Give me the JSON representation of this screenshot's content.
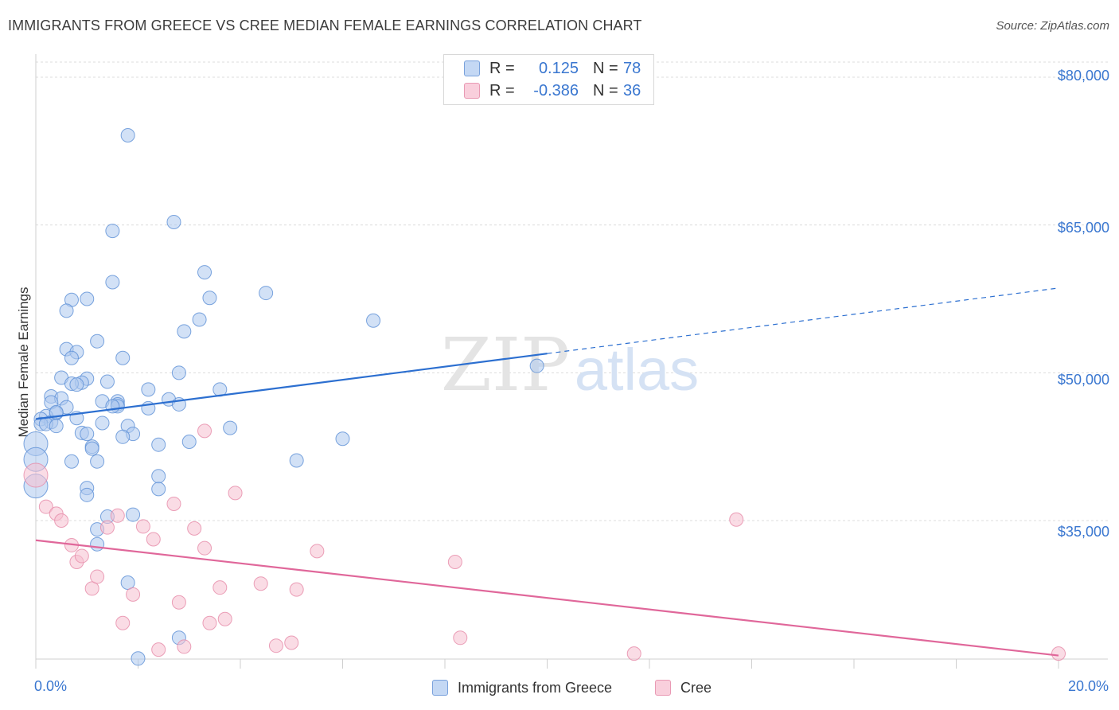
{
  "title": "IMMIGRANTS FROM GREECE VS CREE MEDIAN FEMALE EARNINGS CORRELATION CHART",
  "source": "Source: ZipAtlas.com",
  "watermark": {
    "zip": "ZIP",
    "atlas": "atlas"
  },
  "legend": {
    "greece": {
      "r_label": "R =",
      "r_value": "0.125",
      "n_label": "N =",
      "n_value": "78"
    },
    "cree": {
      "r_label": "R =",
      "r_value": "-0.386",
      "n_label": "N =",
      "n_value": "36"
    }
  },
  "bottom_legend": {
    "greece": "Immigrants from Greece",
    "cree": "Cree"
  },
  "colors": {
    "greece_fill": "#adc8ee",
    "greece_stroke": "#5b8fd6",
    "greece_line": "#2c6fd0",
    "cree_fill": "#f6bfd0",
    "cree_stroke": "#e68aa8",
    "cree_line": "#e0679a",
    "tick_text": "#3a77d0",
    "grid": "#dcdcdc"
  },
  "chart_data": {
    "type": "scatter",
    "xlabel": "",
    "ylabel": "Median Female Earnings",
    "xlim": [
      0,
      20
    ],
    "ylim": [
      20000,
      82500
    ],
    "x_tick_labels": [
      {
        "value": 0,
        "label": "0.0%"
      },
      {
        "value": 20,
        "label": "20.0%"
      }
    ],
    "y_tick_labels": [
      {
        "value": 35000,
        "label": "$35,000"
      },
      {
        "value": 50000,
        "label": "$50,000"
      },
      {
        "value": 65000,
        "label": "$65,000"
      },
      {
        "value": 80000,
        "label": "$80,000"
      }
    ],
    "grid": true,
    "legend_position": "top-center",
    "series": [
      {
        "name": "Immigrants from Greece",
        "points": [
          [
            1.8,
            74100
          ],
          [
            2.7,
            65300
          ],
          [
            1.5,
            64400
          ],
          [
            3.3,
            60200
          ],
          [
            1.5,
            59200
          ],
          [
            4.5,
            58100
          ],
          [
            3.4,
            57600
          ],
          [
            1.0,
            57500
          ],
          [
            0.7,
            57400
          ],
          [
            0.6,
            56300
          ],
          [
            6.6,
            55300
          ],
          [
            3.2,
            55400
          ],
          [
            2.9,
            54200
          ],
          [
            1.2,
            53200
          ],
          [
            0.6,
            52400
          ],
          [
            0.8,
            52100
          ],
          [
            0.7,
            51500
          ],
          [
            1.7,
            51500
          ],
          [
            2.8,
            50000
          ],
          [
            0.5,
            49500
          ],
          [
            1.0,
            49400
          ],
          [
            1.4,
            49100
          ],
          [
            0.9,
            49000
          ],
          [
            0.7,
            48900
          ],
          [
            0.8,
            48800
          ],
          [
            2.2,
            48300
          ],
          [
            3.6,
            48300
          ],
          [
            0.3,
            47600
          ],
          [
            0.5,
            47400
          ],
          [
            2.6,
            47300
          ],
          [
            1.3,
            47100
          ],
          [
            1.6,
            47100
          ],
          [
            0.3,
            47000
          ],
          [
            1.6,
            46800
          ],
          [
            2.8,
            46800
          ],
          [
            0.6,
            46500
          ],
          [
            2.2,
            46400
          ],
          [
            1.6,
            46600
          ],
          [
            0.4,
            45900
          ],
          [
            0.2,
            45600
          ],
          [
            0.8,
            45400
          ],
          [
            0.1,
            45300
          ],
          [
            0.3,
            45000
          ],
          [
            0.1,
            44800
          ],
          [
            0.2,
            44800
          ],
          [
            0.4,
            44600
          ],
          [
            1.3,
            44900
          ],
          [
            1.8,
            44600
          ],
          [
            3.8,
            44400
          ],
          [
            0.9,
            43900
          ],
          [
            1.0,
            43800
          ],
          [
            1.9,
            43800
          ],
          [
            1.7,
            43500
          ],
          [
            6.0,
            43300
          ],
          [
            3.0,
            43000
          ],
          [
            2.4,
            42700
          ],
          [
            1.1,
            42500
          ],
          [
            1.1,
            42300
          ],
          [
            0.0,
            42800
          ],
          [
            0.0,
            41200
          ],
          [
            5.1,
            41100
          ],
          [
            0.7,
            41000
          ],
          [
            1.2,
            41000
          ],
          [
            2.4,
            39500
          ],
          [
            1.0,
            38300
          ],
          [
            2.4,
            38200
          ],
          [
            0.0,
            38500
          ],
          [
            1.0,
            37600
          ],
          [
            1.4,
            35400
          ],
          [
            1.9,
            35600
          ],
          [
            1.2,
            34100
          ],
          [
            1.2,
            32600
          ],
          [
            9.8,
            50700
          ],
          [
            1.8,
            28700
          ],
          [
            2.8,
            23100
          ],
          [
            2.0,
            21000
          ],
          [
            0.4,
            46000
          ],
          [
            1.5,
            46600
          ]
        ],
        "trend": {
          "x0": 0,
          "y0": 45300,
          "x1": 20,
          "y1": 58600,
          "solid_until": 10
        }
      },
      {
        "name": "Cree",
        "points": [
          [
            0.0,
            39600
          ],
          [
            0.2,
            36400
          ],
          [
            0.4,
            35700
          ],
          [
            0.5,
            35000
          ],
          [
            0.7,
            32500
          ],
          [
            0.8,
            30800
          ],
          [
            0.9,
            31400
          ],
          [
            1.1,
            28100
          ],
          [
            1.2,
            29300
          ],
          [
            1.4,
            34300
          ],
          [
            1.6,
            35500
          ],
          [
            1.7,
            24600
          ],
          [
            1.9,
            27500
          ],
          [
            2.1,
            34400
          ],
          [
            2.3,
            33100
          ],
          [
            2.4,
            21900
          ],
          [
            2.7,
            36700
          ],
          [
            2.8,
            26700
          ],
          [
            2.9,
            22200
          ],
          [
            3.1,
            34200
          ],
          [
            3.3,
            32200
          ],
          [
            3.4,
            24600
          ],
          [
            3.6,
            28200
          ],
          [
            3.7,
            25000
          ],
          [
            3.9,
            37800
          ],
          [
            4.4,
            28600
          ],
          [
            4.7,
            22300
          ],
          [
            5.0,
            22600
          ],
          [
            5.1,
            28000
          ],
          [
            5.5,
            31900
          ],
          [
            8.2,
            30800
          ],
          [
            8.3,
            23100
          ],
          [
            11.7,
            21500
          ],
          [
            13.7,
            35100
          ],
          [
            20.0,
            21500
          ],
          [
            3.3,
            44100
          ]
        ],
        "trend": {
          "x0": 0,
          "y0": 33000,
          "x1": 20,
          "y1": 21300,
          "solid_until": 20
        }
      }
    ]
  }
}
